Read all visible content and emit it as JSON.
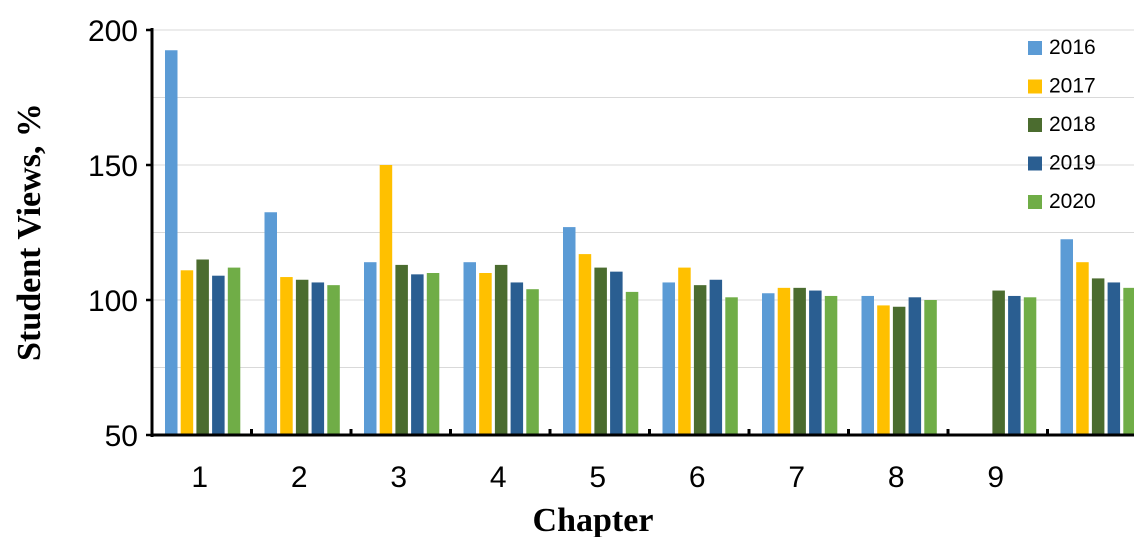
{
  "chart_data": {
    "type": "bar",
    "title": "",
    "xlabel": "Chapter",
    "ylabel": "Student Views, %",
    "ylim": [
      50,
      200
    ],
    "yticks": [
      50,
      100,
      150,
      200
    ],
    "categories": [
      "1",
      "2",
      "3",
      "4",
      "5",
      "6",
      "7",
      "8",
      "9",
      ""
    ],
    "grid": true,
    "legend_position": "top-right",
    "series": [
      {
        "name": "2016",
        "color": "#5B9BD5",
        "values": [
          192.5,
          132.5,
          114,
          114,
          127,
          106.5,
          102.5,
          101.5,
          null,
          122.5
        ]
      },
      {
        "name": "2017",
        "color": "#FFC000",
        "values": [
          111,
          108.5,
          150,
          110,
          117,
          112,
          104.5,
          98,
          null,
          114
        ]
      },
      {
        "name": "2018",
        "color": "#4B6C2F",
        "values": [
          115,
          107.5,
          113,
          113,
          112,
          105.5,
          104.5,
          97.5,
          103.5,
          108
        ]
      },
      {
        "name": "2019",
        "color": "#2A5E91",
        "values": [
          109,
          106.5,
          109.5,
          106.5,
          110.5,
          107.5,
          103.5,
          101,
          101.5,
          106.5
        ]
      },
      {
        "name": "2020",
        "color": "#70AD47",
        "values": [
          112,
          105.5,
          110,
          104,
          103,
          101,
          101.5,
          100,
          101,
          104.5
        ]
      }
    ]
  }
}
